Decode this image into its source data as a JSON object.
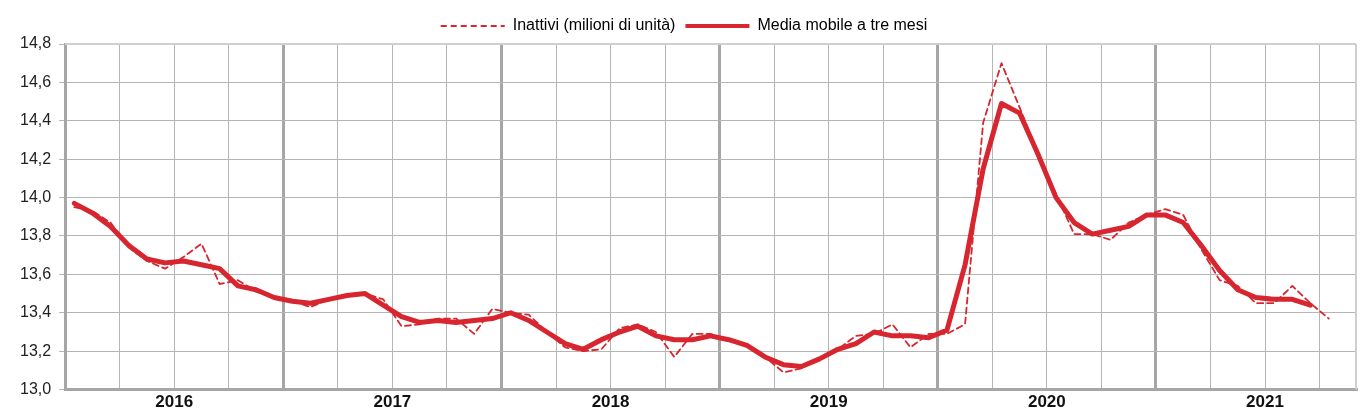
{
  "chart_data": {
    "type": "line",
    "x": [
      2016.042,
      2016.125,
      2016.208,
      2016.292,
      2016.375,
      2016.458,
      2016.542,
      2016.625,
      2016.708,
      2016.792,
      2016.875,
      2016.958,
      2017.042,
      2017.125,
      2017.208,
      2017.292,
      2017.375,
      2017.458,
      2017.542,
      2017.625,
      2017.708,
      2017.792,
      2017.875,
      2017.958,
      2018.042,
      2018.125,
      2018.208,
      2018.292,
      2018.375,
      2018.458,
      2018.542,
      2018.625,
      2018.708,
      2018.792,
      2018.875,
      2018.958,
      2019.042,
      2019.125,
      2019.208,
      2019.292,
      2019.375,
      2019.458,
      2019.542,
      2019.625,
      2019.708,
      2019.792,
      2019.875,
      2019.958,
      2020.042,
      2020.125,
      2020.208,
      2020.292,
      2020.375,
      2020.458,
      2020.542,
      2020.625,
      2020.708,
      2020.792,
      2020.875,
      2020.958,
      2021.042,
      2021.125,
      2021.208,
      2021.292,
      2021.375,
      2021.458,
      2021.542,
      2021.625,
      2021.708,
      2021.792
    ],
    "series": [
      {
        "name": "Inattivi (milioni di unità)",
        "color": "#d7262f",
        "line_style": "dashed",
        "values": [
          13.95,
          13.93,
          13.87,
          13.74,
          13.67,
          13.63,
          13.69,
          13.76,
          13.55,
          13.57,
          13.51,
          13.48,
          13.46,
          13.43,
          13.47,
          13.49,
          13.5,
          13.47,
          13.33,
          13.34,
          13.37,
          13.37,
          13.29,
          13.42,
          13.4,
          13.39,
          13.3,
          13.22,
          13.2,
          13.21,
          13.32,
          13.34,
          13.3,
          13.17,
          13.29,
          13.29,
          13.26,
          13.23,
          13.17,
          13.09,
          13.11,
          13.16,
          13.21,
          13.28,
          13.29,
          13.34,
          13.22,
          13.29,
          13.29,
          13.34,
          14.39,
          14.7,
          14.47,
          14.23,
          14.02,
          13.81,
          13.81,
          13.78,
          13.87,
          13.91,
          13.94,
          13.91,
          13.73,
          13.57,
          13.54,
          13.45,
          13.45,
          13.54,
          13.45,
          13.37
        ]
      },
      {
        "name": "Media mobile a tre mesi",
        "color": "#d7262f",
        "line_style": "solid",
        "values": [
          13.97,
          13.92,
          13.85,
          13.75,
          13.68,
          13.66,
          13.67,
          13.65,
          13.63,
          13.54,
          13.52,
          13.48,
          13.46,
          13.45,
          13.47,
          13.49,
          13.5,
          13.44,
          13.38,
          13.35,
          13.36,
          13.35,
          13.36,
          13.37,
          13.4,
          13.36,
          13.3,
          13.24,
          13.21,
          13.26,
          13.3,
          13.33,
          13.28,
          13.26,
          13.26,
          13.28,
          13.26,
          13.23,
          13.17,
          13.13,
          13.12,
          13.16,
          13.21,
          13.24,
          13.3,
          13.28,
          13.28,
          13.27,
          13.31,
          13.65,
          14.15,
          14.49,
          14.44,
          14.23,
          14.0,
          13.87,
          13.81,
          13.83,
          13.85,
          13.91,
          13.91,
          13.87,
          13.75,
          13.62,
          13.52,
          13.48,
          13.47,
          13.47,
          13.44,
          null
        ]
      }
    ],
    "xlim": [
      2016,
      2021.917
    ],
    "xticks": [
      {
        "value": 2016,
        "label": null
      },
      {
        "value": 2016.25,
        "label": null
      },
      {
        "value": 2016.5,
        "label": "2016"
      },
      {
        "value": 2016.75,
        "label": null
      },
      {
        "value": 2017,
        "label": null
      },
      {
        "value": 2017.25,
        "label": null
      },
      {
        "value": 2017.5,
        "label": "2017"
      },
      {
        "value": 2017.75,
        "label": null
      },
      {
        "value": 2018,
        "label": null
      },
      {
        "value": 2018.25,
        "label": null
      },
      {
        "value": 2018.5,
        "label": "2018"
      },
      {
        "value": 2018.75,
        "label": null
      },
      {
        "value": 2019,
        "label": null
      },
      {
        "value": 2019.25,
        "label": null
      },
      {
        "value": 2019.5,
        "label": "2019"
      },
      {
        "value": 2019.75,
        "label": null
      },
      {
        "value": 2020,
        "label": null
      },
      {
        "value": 2020.25,
        "label": null
      },
      {
        "value": 2020.5,
        "label": "2020"
      },
      {
        "value": 2020.75,
        "label": null
      },
      {
        "value": 2021,
        "label": null
      },
      {
        "value": 2021.25,
        "label": null
      },
      {
        "value": 2021.5,
        "label": "2021"
      },
      {
        "value": 2021.75,
        "label": null
      }
    ],
    "ylim": [
      13.0,
      14.8
    ],
    "yticks": [
      {
        "value": 13.0,
        "label": "13,0"
      },
      {
        "value": 13.2,
        "label": "13,2"
      },
      {
        "value": 13.4,
        "label": "13,4"
      },
      {
        "value": 13.6,
        "label": "13,6"
      },
      {
        "value": 13.8,
        "label": "13,8"
      },
      {
        "value": 14.0,
        "label": "14,0"
      },
      {
        "value": 14.2,
        "label": "14,2"
      },
      {
        "value": 14.4,
        "label": "14,4"
      },
      {
        "value": 14.6,
        "label": "14,6"
      },
      {
        "value": 14.8,
        "label": "14,8"
      }
    ],
    "grid": true,
    "legend": "top",
    "marker": "none"
  }
}
